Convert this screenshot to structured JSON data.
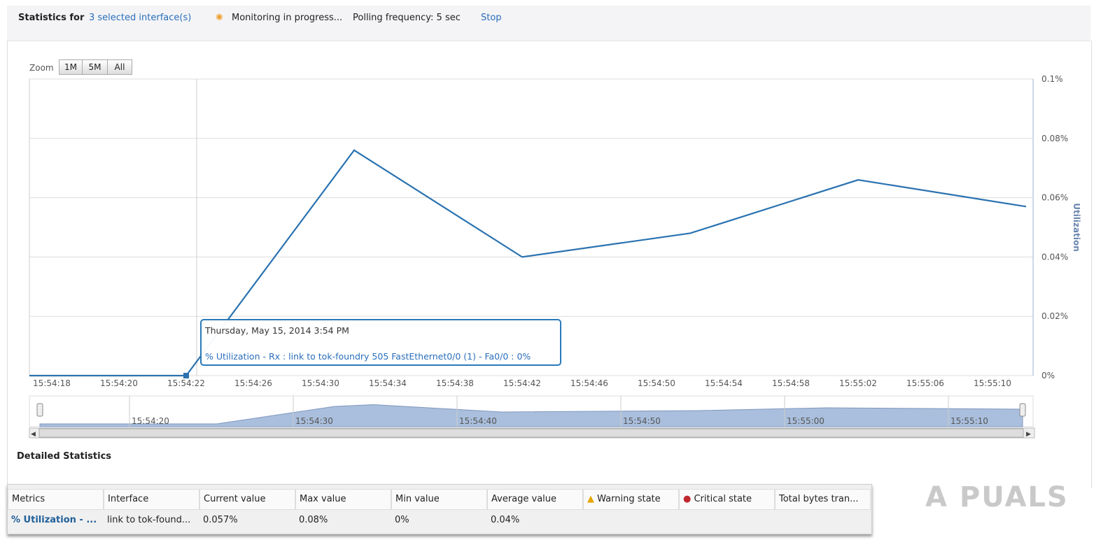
{
  "header": {
    "title_prefix": "Statistics for",
    "selected_link": "3 selected interface(s)",
    "monitoring": "Monitoring in progress...",
    "polling": "Polling frequency: 5 sec",
    "stop": "Stop",
    "spinner_icon": "loading-spinner-icon"
  },
  "zoom": {
    "label": "Zoom",
    "buttons": [
      "1M",
      "5M",
      "All"
    ]
  },
  "chart_data": {
    "type": "line",
    "ylabel": "Utilization",
    "ylim": [
      0,
      0.1
    ],
    "yticks": [
      "0%",
      "0.02%",
      "0.04%",
      "0.06%",
      "0.08%",
      "0.1%"
    ],
    "xticks": [
      "15:54:18",
      "15:54:20",
      "15:54:22",
      "15:54:26",
      "15:54:30",
      "15:54:34",
      "15:54:38",
      "15:54:42",
      "15:54:46",
      "15:54:50",
      "15:54:54",
      "15:54:58",
      "15:55:02",
      "15:55:06",
      "15:55:10"
    ],
    "series": [
      {
        "name": "% Utilization - Rx : link to tok-foundry 505 FastEthernet0/0 (1) - Fa0/0",
        "color": "#2a72b0",
        "x": [
          "15:54:18",
          "15:54:22",
          "15:54:32",
          "15:54:42",
          "15:54:52",
          "15:55:02",
          "15:55:12"
        ],
        "y": [
          0,
          0,
          0.076,
          0.04,
          0.048,
          0.066,
          0.057
        ]
      }
    ],
    "navigator_ticks": [
      "15:54:20",
      "15:54:30",
      "15:54:40",
      "15:54:50",
      "15:55:00",
      "15:55:10"
    ],
    "grid": true
  },
  "tooltip": {
    "date": "Thursday, May 15, 2014 3:54 PM",
    "series_text": "% Utilization - Rx : link to tok-foundry 505 FastEthernet0/0 (1) - Fa0/0 : 0%"
  },
  "detail": {
    "title": "Detailed Statistics",
    "columns": [
      "Metrics",
      "Interface",
      "Current value",
      "Max value",
      "Min value",
      "Average value",
      "Warning state",
      "Critical state",
      "Total bytes tran..."
    ],
    "row": [
      "% Utilization - ...",
      "link to tok-found...",
      "0.057%",
      "0.08%",
      "0%",
      "0.04%",
      "",
      "",
      ""
    ]
  },
  "watermark": "APPUALS"
}
